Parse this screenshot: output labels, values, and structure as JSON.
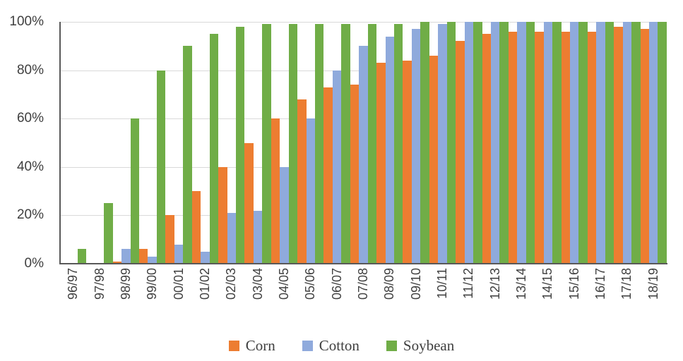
{
  "chart_data": {
    "type": "bar",
    "title": "",
    "xlabel": "",
    "ylabel": "",
    "ylim": [
      0,
      100
    ],
    "grid": true,
    "legend_position": "bottom",
    "yticks": [
      "0%",
      "20%",
      "40%",
      "60%",
      "80%",
      "100%"
    ],
    "categories": [
      "96/97",
      "97/98",
      "98/99",
      "99/00",
      "00/01",
      "01/02",
      "02/03",
      "03/04",
      "04/05",
      "05/06",
      "06/07",
      "07/08",
      "08/09",
      "09/10",
      "10/11",
      "11/12",
      "12/13",
      "13/14",
      "14/15",
      "15/16",
      "16/17",
      "17/18",
      "18/19"
    ],
    "series": [
      {
        "name": "Corn",
        "color": "#ED7D31",
        "values": [
          null,
          null,
          1,
          6,
          20,
          30,
          40,
          50,
          60,
          68,
          73,
          74,
          83,
          84,
          86,
          92,
          95,
          96,
          96,
          96,
          96,
          98,
          97
        ]
      },
      {
        "name": "Cotton",
        "color": "#8FAADC",
        "values": [
          null,
          null,
          6,
          3,
          8,
          5,
          21,
          22,
          40,
          60,
          80,
          90,
          94,
          97,
          99,
          100,
          100,
          100,
          100,
          100,
          100,
          100,
          100
        ]
      },
      {
        "name": "Soybean",
        "color": "#70AD47",
        "values": [
          6,
          25,
          60,
          80,
          90,
          95,
          98,
          99,
          99,
          99,
          99,
          99,
          99,
          100,
          100,
          100,
          100,
          100,
          100,
          100,
          100,
          100,
          100
        ]
      }
    ],
    "colors": {
      "axis_line": "#595959",
      "gridline": "#D9D9D9",
      "tick_text": "#404040"
    }
  }
}
